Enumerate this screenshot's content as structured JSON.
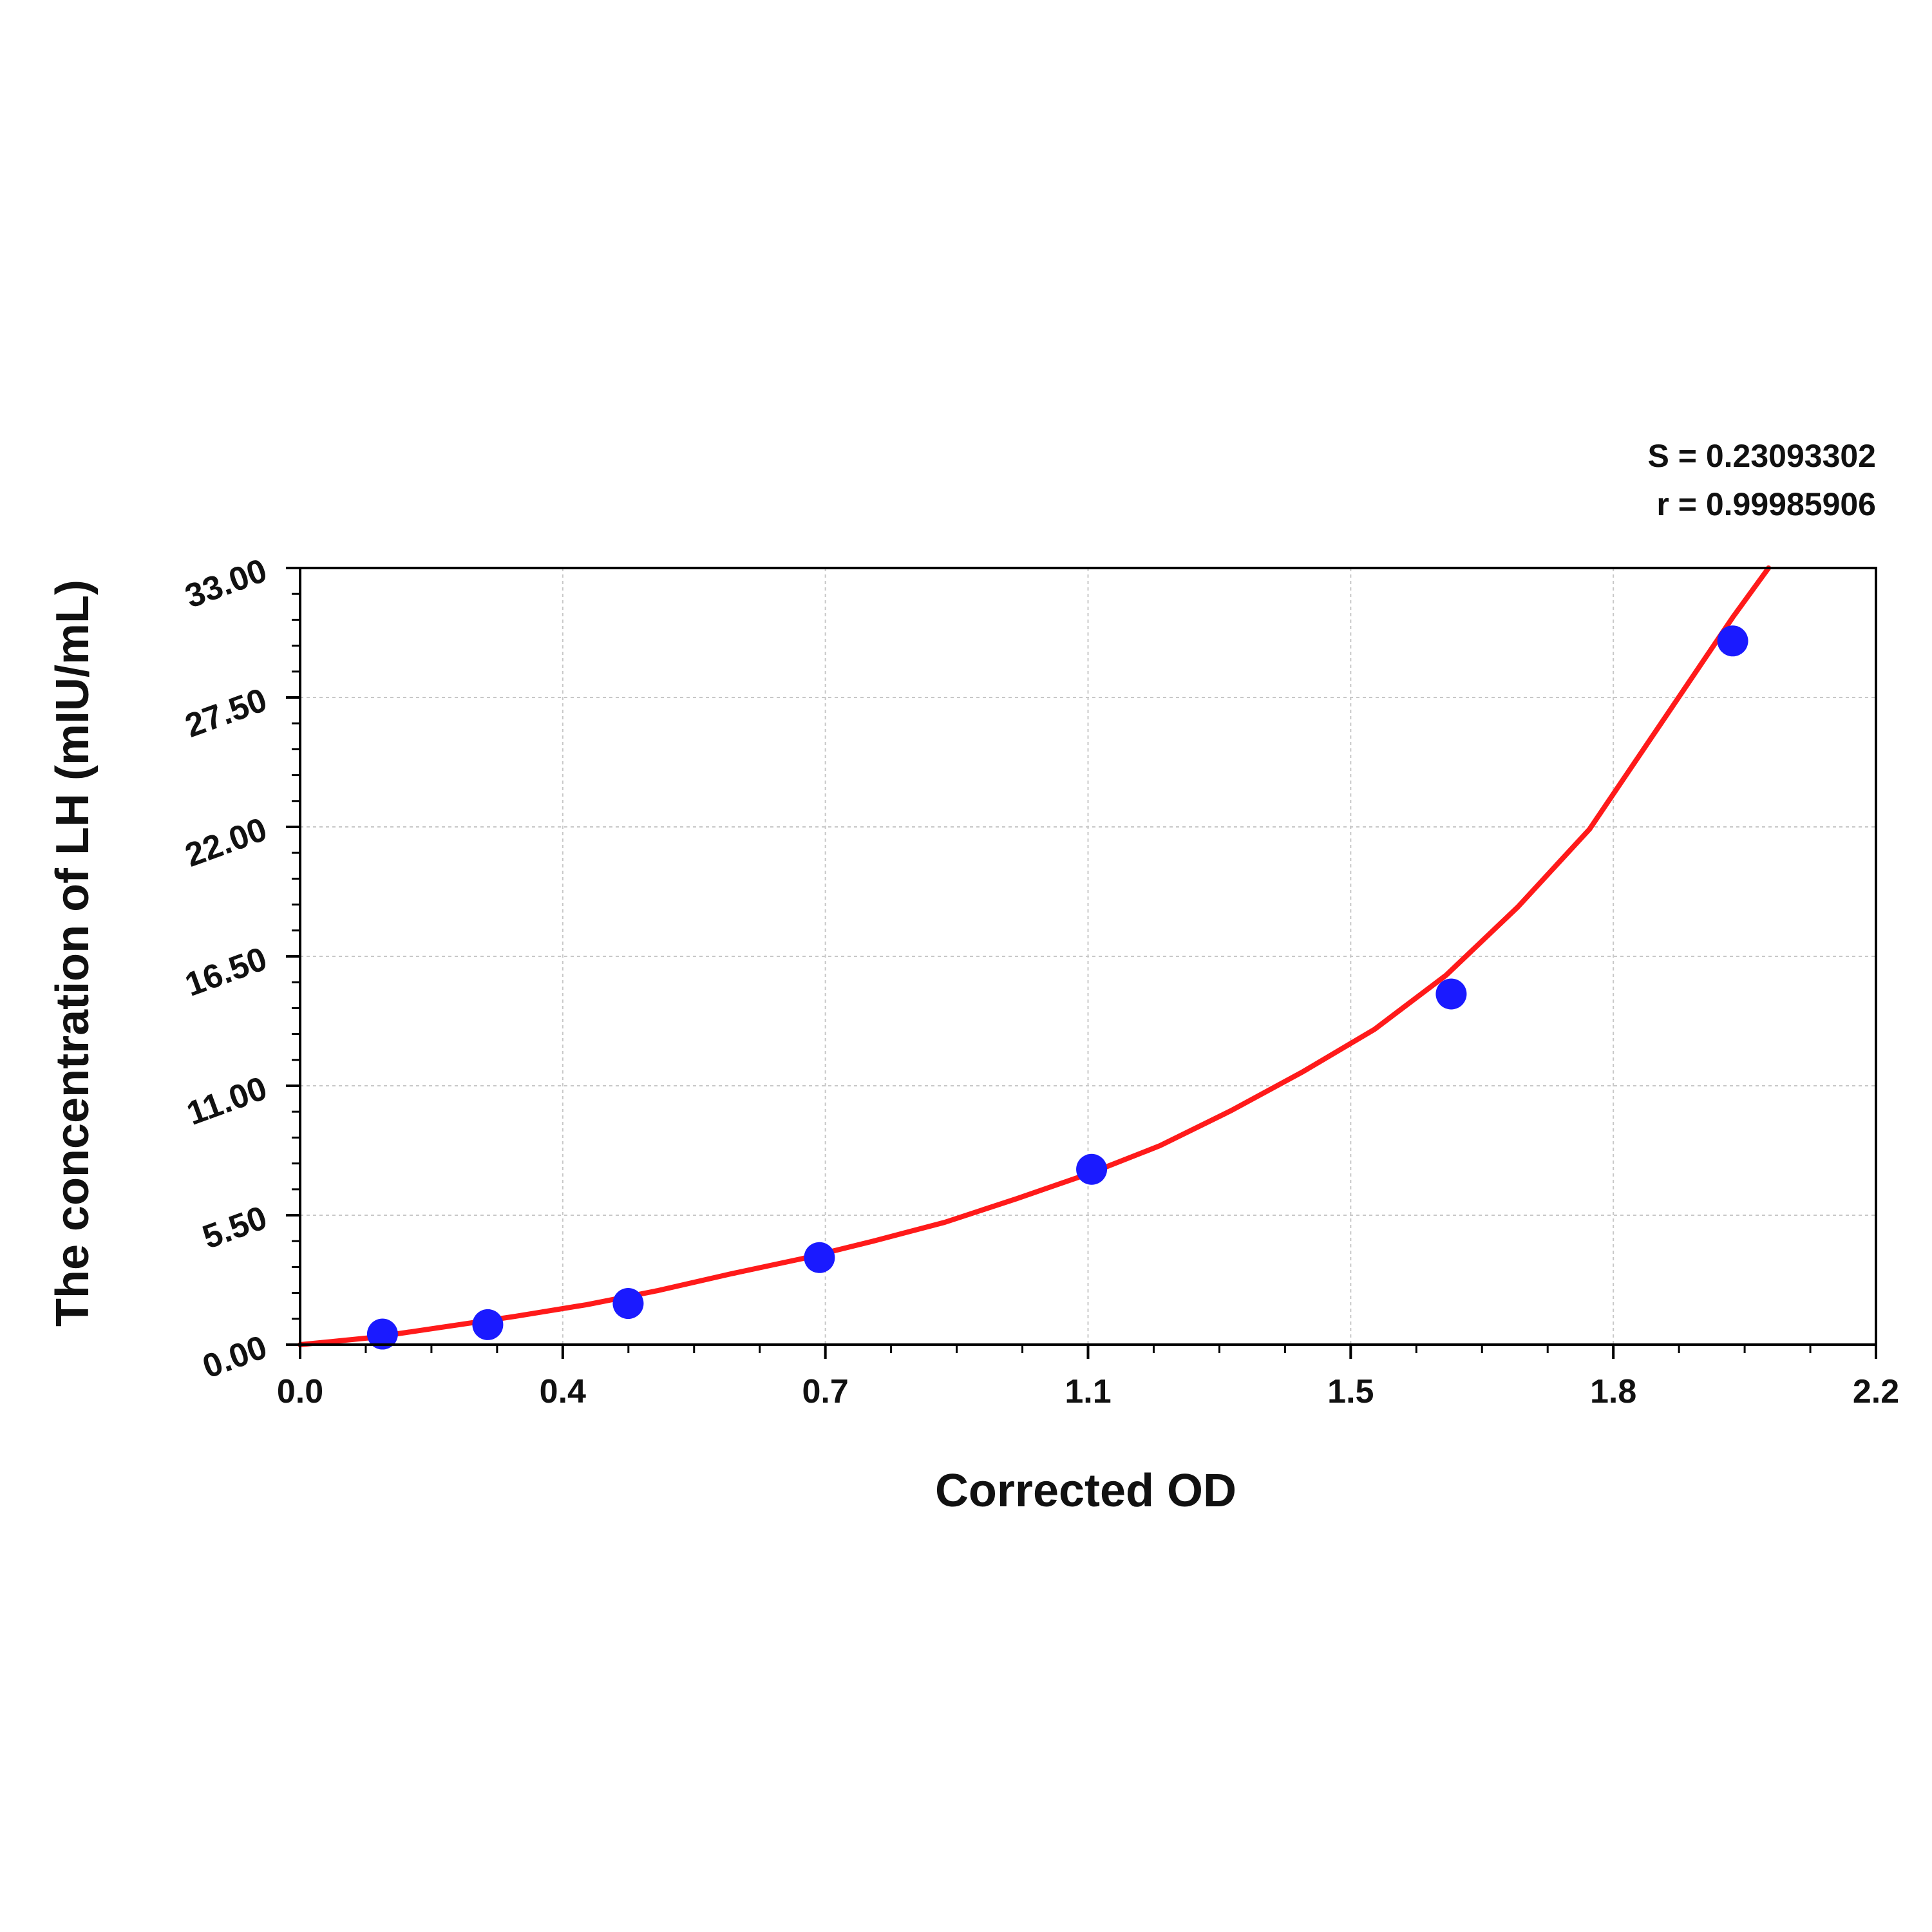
{
  "chart_data": {
    "type": "scatter",
    "title": "",
    "xlabel": "Corrected OD",
    "ylabel": "The concentration of LH (mIU/mL)",
    "xlim": [
      0.0,
      2.2
    ],
    "ylim": [
      0.0,
      33.0
    ],
    "x_ticks": [
      "0.0",
      "0.4",
      "0.7",
      "1.1",
      "1.5",
      "1.8",
      "2.2"
    ],
    "y_ticks": [
      "0.00",
      "5.50",
      "11.00",
      "16.50",
      "22.00",
      "27.50",
      "33.00"
    ],
    "grid": true,
    "stats": [
      "S = 0.23093302",
      "r = 0.99985906"
    ],
    "series": [
      {
        "kind": "points",
        "color": "#1a1aff",
        "x": [
          0.115,
          0.262,
          0.458,
          0.725,
          1.105,
          1.607,
          2.0
        ],
        "y": [
          0.45,
          0.85,
          1.75,
          3.7,
          7.45,
          14.9,
          29.9
        ]
      },
      {
        "kind": "fit-curve",
        "color": "#ff1a1a",
        "x": [
          0.0,
          0.1,
          0.2,
          0.3,
          0.4,
          0.5,
          0.6,
          0.7,
          0.8,
          0.9,
          1.0,
          1.1,
          1.2,
          1.3,
          1.4,
          1.5,
          1.6,
          1.7,
          1.8,
          1.9,
          2.0,
          2.05
        ],
        "y": [
          0.0,
          0.3,
          0.75,
          1.2,
          1.7,
          2.3,
          3.0,
          3.65,
          4.4,
          5.2,
          6.2,
          7.25,
          8.45,
          9.95,
          11.6,
          13.4,
          15.7,
          18.6,
          21.9,
          26.4,
          30.9,
          33.0
        ]
      }
    ]
  }
}
